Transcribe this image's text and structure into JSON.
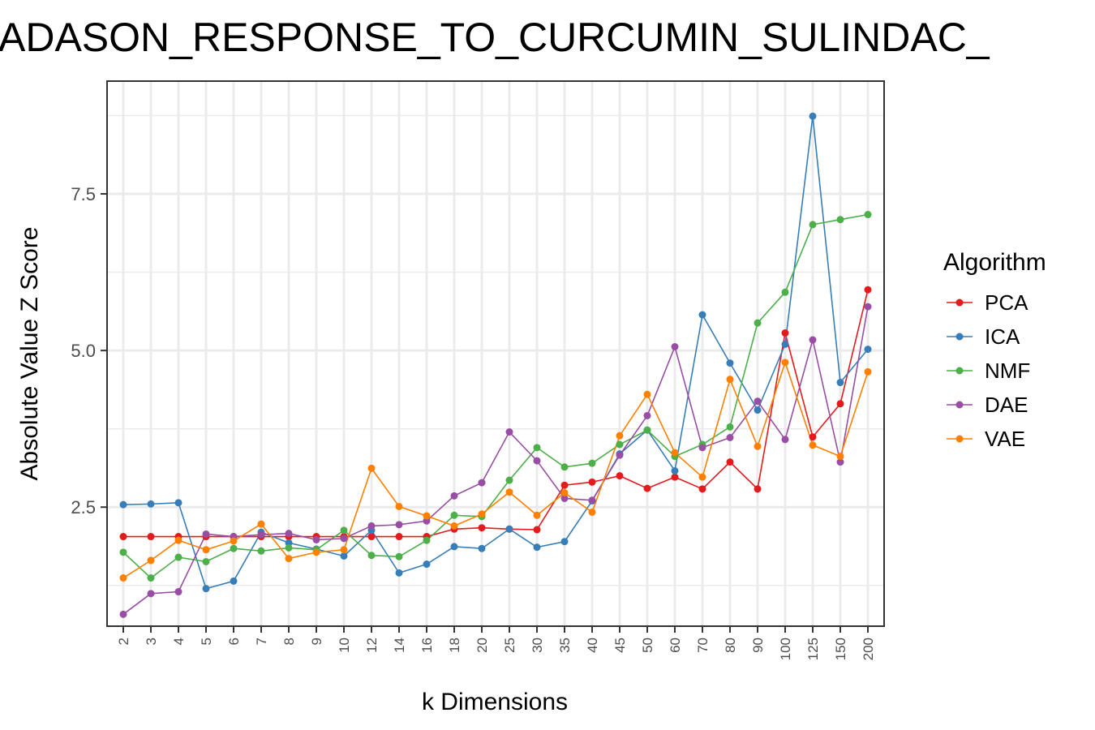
{
  "chart_data": {
    "type": "line",
    "title": "ADASON_RESPONSE_TO_CURCUMIN_SULINDAC_",
    "xlabel": "k Dimensions",
    "ylabel": "Absolute Value Z Score",
    "categories": [
      "2",
      "3",
      "4",
      "5",
      "6",
      "7",
      "8",
      "9",
      "10",
      "12",
      "14",
      "16",
      "18",
      "20",
      "25",
      "30",
      "35",
      "40",
      "45",
      "50",
      "60",
      "70",
      "80",
      "90",
      "100",
      "125",
      "150",
      "200"
    ],
    "yticks": [
      "2.5",
      "5.0",
      "7.5"
    ],
    "ylim": [
      0.6,
      9.3
    ],
    "grid": true,
    "legend": {
      "title": "Algorithm",
      "position": "right"
    },
    "series": [
      {
        "name": "PCA",
        "color": "#e41a1c",
        "values": [
          2.03,
          2.03,
          2.03,
          2.03,
          2.03,
          2.03,
          2.03,
          2.03,
          2.03,
          2.03,
          2.03,
          2.03,
          2.15,
          2.17,
          2.15,
          2.14,
          2.85,
          2.9,
          3.0,
          2.8,
          2.98,
          2.79,
          3.22,
          2.79,
          5.28,
          3.62,
          4.15,
          5.97
        ]
      },
      {
        "name": "ICA",
        "color": "#377eb8",
        "values": [
          2.54,
          2.55,
          2.57,
          1.2,
          1.32,
          2.1,
          1.93,
          1.83,
          1.72,
          2.13,
          1.45,
          1.59,
          1.87,
          1.84,
          2.15,
          1.86,
          1.95,
          2.6,
          3.35,
          3.73,
          3.08,
          5.57,
          4.8,
          4.05,
          5.1,
          8.74,
          4.49,
          5.02
        ]
      },
      {
        "name": "NMF",
        "color": "#4daf4a",
        "values": [
          1.78,
          1.37,
          1.7,
          1.63,
          1.84,
          1.8,
          1.85,
          1.82,
          2.13,
          1.73,
          1.71,
          1.97,
          2.37,
          2.35,
          2.93,
          3.45,
          3.14,
          3.2,
          3.5,
          3.73,
          3.31,
          3.5,
          3.78,
          5.44,
          5.93,
          7.01,
          7.09,
          7.17
        ]
      },
      {
        "name": "DAE",
        "color": "#984ea3",
        "values": [
          0.79,
          1.12,
          1.15,
          2.07,
          2.03,
          2.06,
          2.08,
          1.98,
          2.0,
          2.2,
          2.22,
          2.28,
          2.68,
          2.89,
          3.7,
          3.24,
          2.64,
          2.61,
          3.33,
          3.96,
          5.06,
          3.45,
          3.61,
          4.19,
          3.58,
          5.17,
          3.22,
          5.7
        ]
      },
      {
        "name": "VAE",
        "color": "#ff7f00",
        "values": [
          1.37,
          1.65,
          1.97,
          1.82,
          1.96,
          2.23,
          1.68,
          1.78,
          1.82,
          3.12,
          2.51,
          2.36,
          2.2,
          2.39,
          2.74,
          2.37,
          2.73,
          2.42,
          3.64,
          4.3,
          3.37,
          2.98,
          4.54,
          3.47,
          4.81,
          3.49,
          3.31,
          4.66
        ]
      }
    ]
  }
}
